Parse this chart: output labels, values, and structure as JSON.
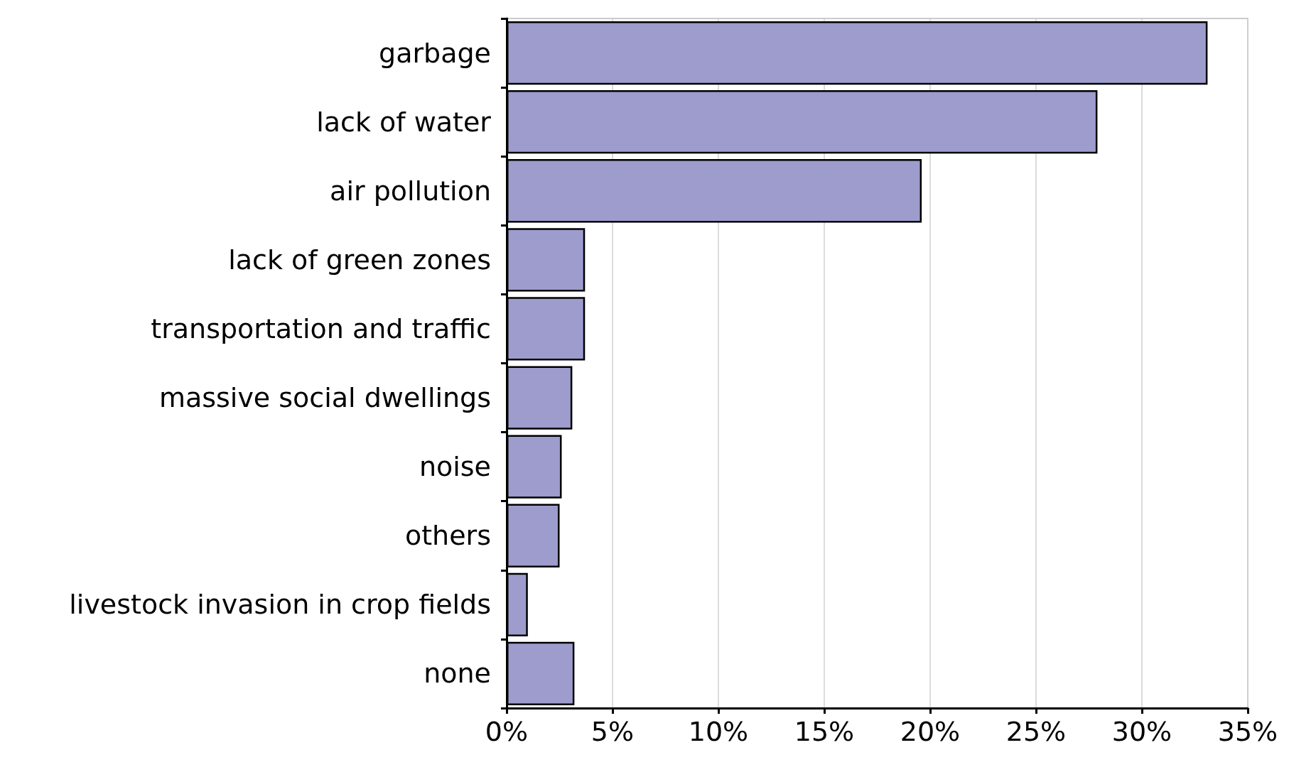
{
  "chart_data": {
    "type": "bar",
    "orientation": "horizontal",
    "categories": [
      "garbage",
      "lack of water",
      "air pollution",
      "lack of green zones",
      "transportation and traffic",
      "massive social dwellings",
      "noise",
      "others",
      "livestock invasion in crop fields",
      "none"
    ],
    "values": [
      33.1,
      27.9,
      19.6,
      3.7,
      3.7,
      3.1,
      2.6,
      2.5,
      1.0,
      3.2
    ],
    "color": "#9e9ccc",
    "xlim": [
      0,
      35
    ],
    "xticks": [
      {
        "value": 0,
        "label": "0%"
      },
      {
        "value": 5,
        "label": "5%"
      },
      {
        "value": 10,
        "label": "10%"
      },
      {
        "value": 15,
        "label": "15%"
      },
      {
        "value": 20,
        "label": "20%"
      },
      {
        "value": 25,
        "label": "25%"
      },
      {
        "value": 30,
        "label": "30%"
      },
      {
        "value": 35,
        "label": "35%"
      }
    ],
    "grid": "x"
  }
}
